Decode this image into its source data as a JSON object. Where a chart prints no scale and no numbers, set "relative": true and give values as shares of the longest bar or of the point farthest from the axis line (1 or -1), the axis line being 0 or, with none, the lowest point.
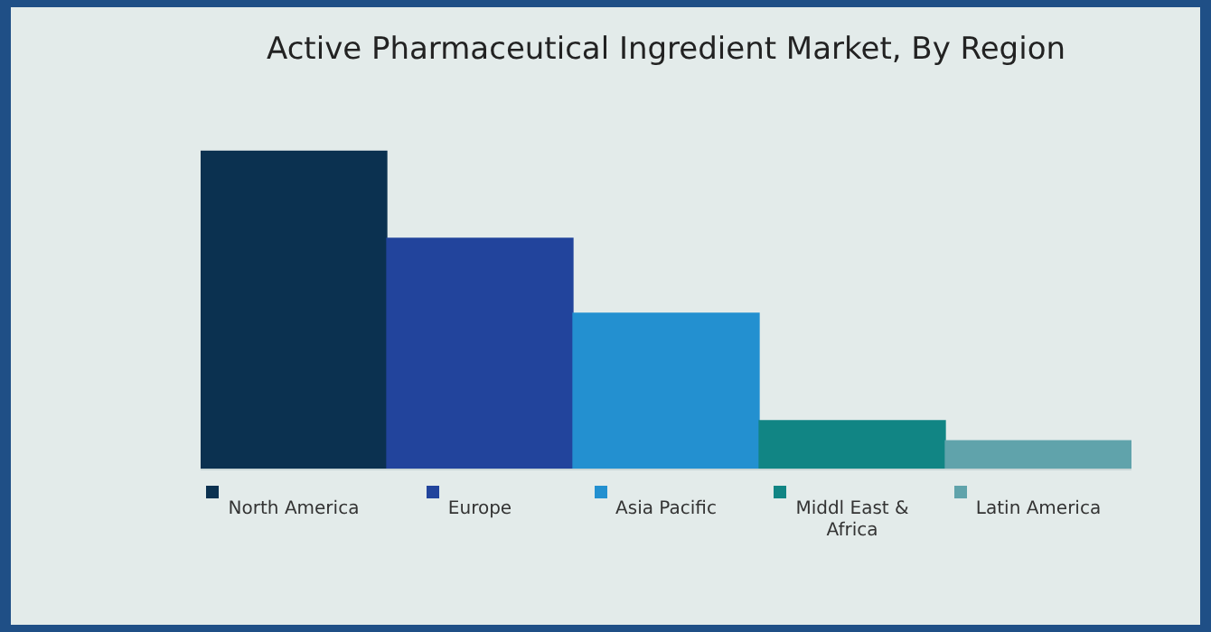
{
  "chart_data": {
    "type": "bar",
    "title": "Active Pharmaceutical Ingredient Market, By Region",
    "relative": true,
    "grid": false,
    "categories": [
      "North America",
      "Europe",
      "Asia Pacific",
      "Middl East & Africa",
      "Latin America"
    ],
    "values": [
      1,
      0.725,
      0.49,
      0.153,
      0.09
    ],
    "colors": [
      "#0b3150",
      "#22449c",
      "#2390d0",
      "#118584",
      "#60a3ab"
    ]
  }
}
